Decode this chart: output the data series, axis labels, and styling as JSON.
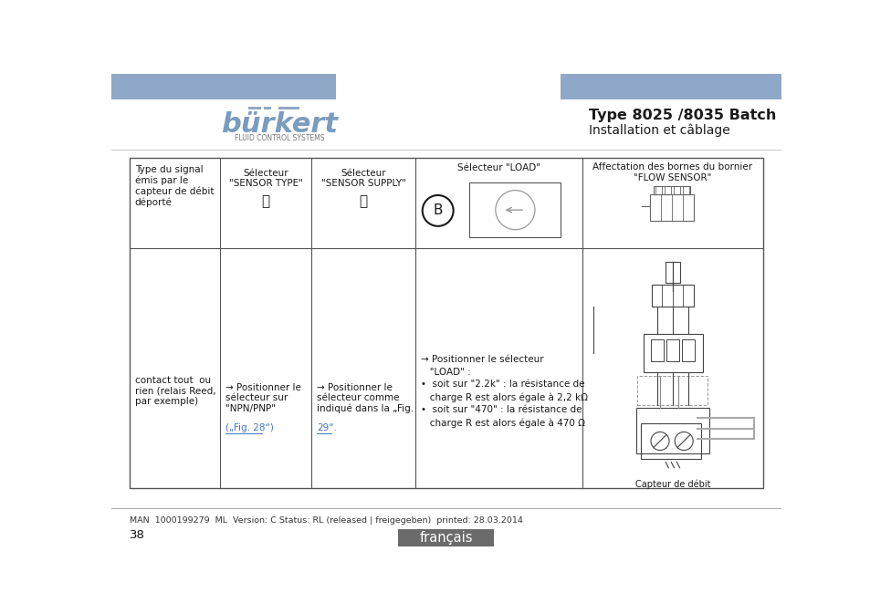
{
  "header_bar_color": "#8fa8c8",
  "title_bold": "Type 8025 /8035 Batch",
  "title_sub": "Installation et câblage",
  "logo_text": "bürkert",
  "logo_sub": "FLUID CONTROL SYSTEMS",
  "footer_line_text": "MAN  1000199279  ML  Version: C Status: RL (released | freigegeben)  printed: 28.03.2014",
  "footer_page": "38",
  "footer_lang_text": "français",
  "footer_lang_bg": "#6b6b6b",
  "link_color": "#4472c4",
  "text_color": "#1a1a1a",
  "table_line_color": "#555555",
  "background_color": "#ffffff",
  "col1_header": "Type du signal\némis par le\ncapteur de débit\ndéporté",
  "col2_header_l1": "Sélecteur",
  "col2_header_l2": "\"SENSOR TYPE\"",
  "col2_header_sym": "Ⓒ",
  "col3_header_l1": "Sélecteur",
  "col3_header_l2": "\"SENSOR SUPPLY\"",
  "col3_header_sym": "Ⓐ",
  "col4_header": "Sélecteur \"LOAD\"",
  "col5_header_l1": "Affectation des bornes du bornier",
  "col5_header_l2": "\"FLOW SENSOR\"",
  "col1_body": "contact tout  ou\nrien (relais Reed,\npar exemple)",
  "col2_body_main": "→ Positionner le\nsélecteur sur\n\"NPN/PNP\"",
  "col2_body_link": "(„Fig. 28“)",
  "col3_body_main": "→ Positionner le\nsélecteur comme\nindiqué dans la „Fig.",
  "col3_body_link": "29“.",
  "col4_body_l1": "→ Positionner le sélecteur",
  "col4_body_l2": "   \"LOAD\" :",
  "col4_body_l3": "•  soit sur \"2.2k\" : la résistance de",
  "col4_body_l4": "   charge R est alors égale à 2,2 kΩ",
  "col4_body_l5": "•  soit sur \"470\" : la résistance de",
  "col4_body_l6": "   charge R est alors égale à 470 Ω",
  "col5_note": "Capteur de débit"
}
